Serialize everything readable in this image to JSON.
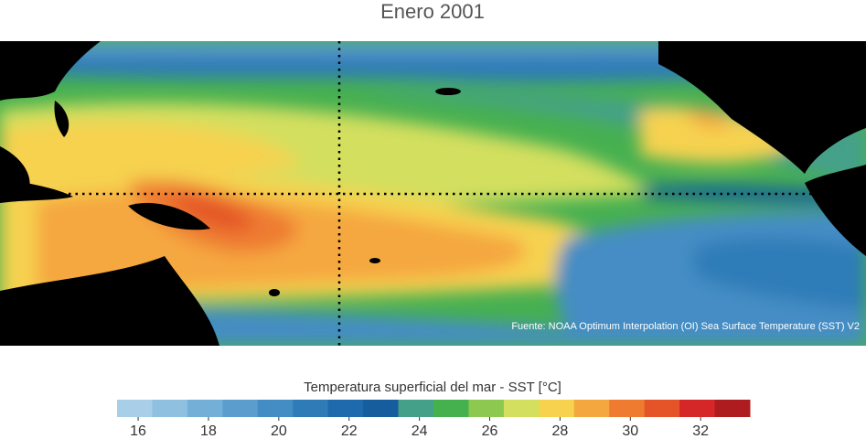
{
  "header": {
    "title": "Enero 2001"
  },
  "map": {
    "source": "Fuente: NOAA Optimum Interpolation (OI) Sea Surface Temperature (SST) V2"
  },
  "colorbar": {
    "label": "Temperatura superficial del mar - SST  [°C]",
    "range": [
      15.4,
      33.4
    ],
    "ticks": [
      16,
      18,
      20,
      22,
      24,
      26,
      28,
      30,
      32
    ],
    "colors": [
      "#a9cfe8",
      "#8fc0e0",
      "#74afd7",
      "#5b9ece",
      "#448dc4",
      "#2f7bb8",
      "#1f6aad",
      "#155d9c",
      "#45a08a",
      "#45b04e",
      "#8dc850",
      "#d3df5e",
      "#f6d24f",
      "#f5a73f",
      "#ee7b30",
      "#e45428",
      "#d52727",
      "#af1c20"
    ]
  }
}
